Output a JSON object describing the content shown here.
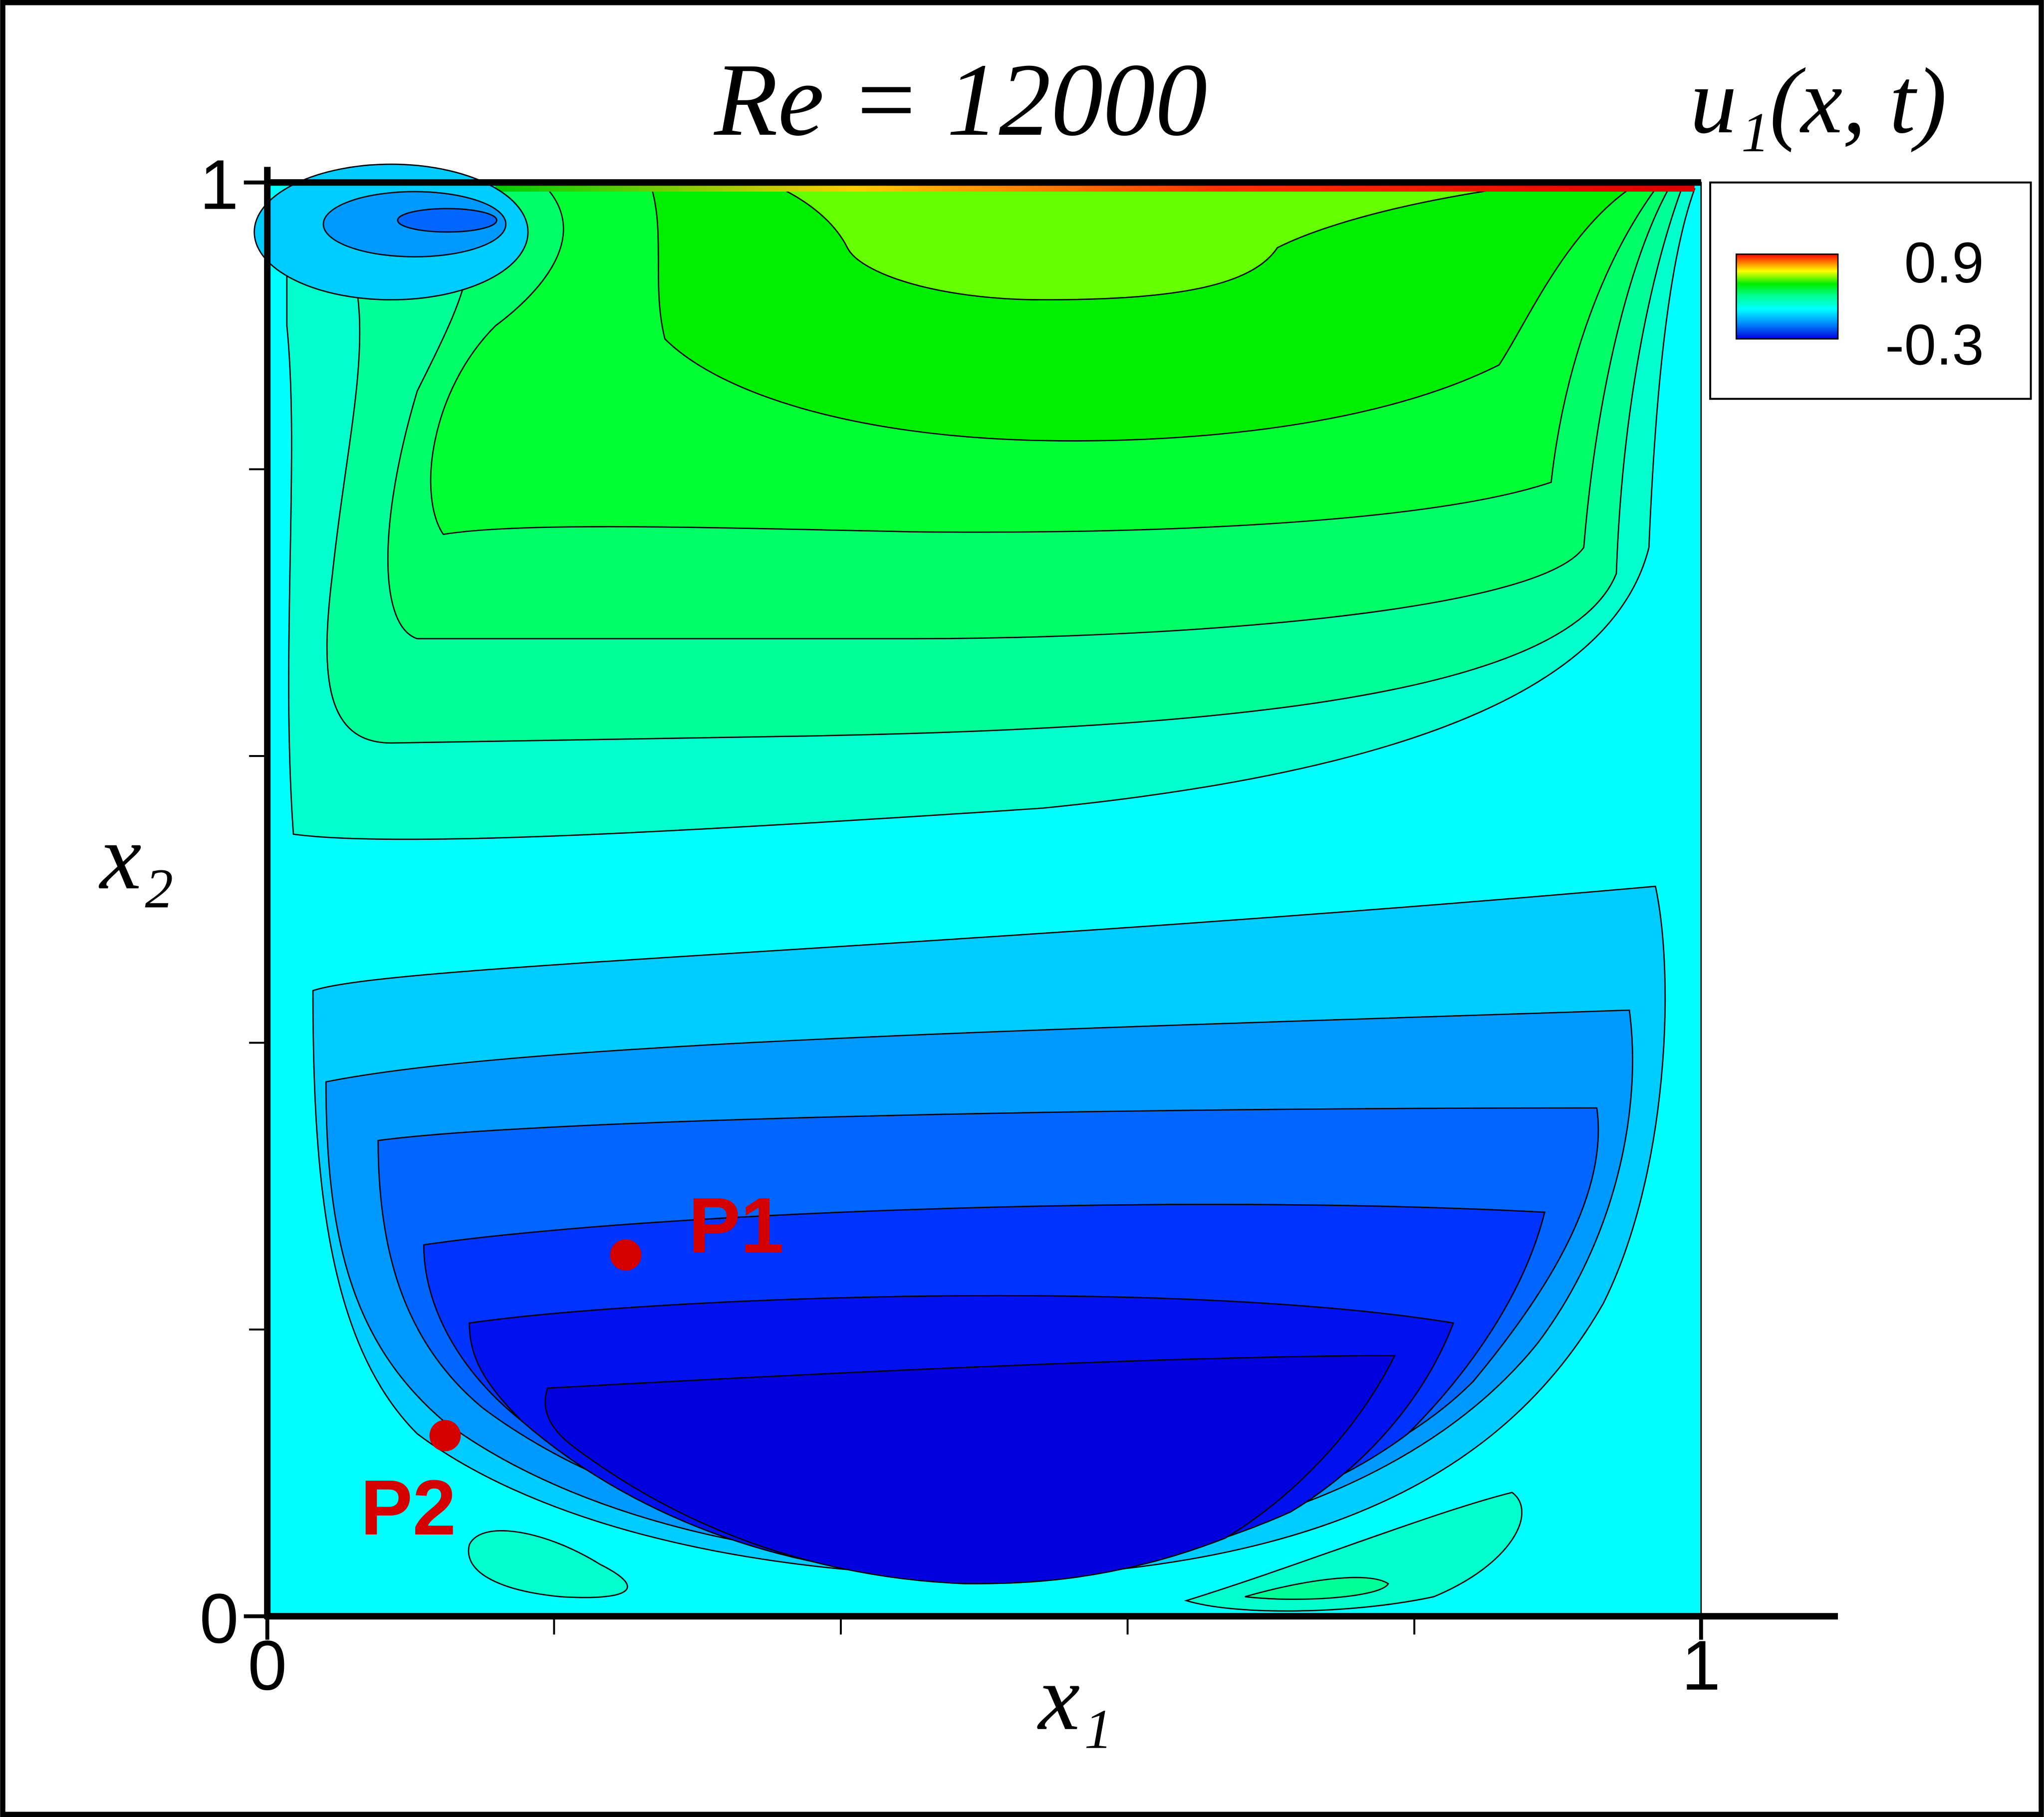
{
  "chart_data": {
    "type": "contour",
    "title": "Re = 12000",
    "x_label": "x₁",
    "y_label": "x₂",
    "xlim": [
      0,
      1
    ],
    "ylim": [
      0,
      1
    ],
    "xticks": [
      0,
      1
    ],
    "yticks": [
      0,
      1
    ],
    "xminor": [
      0.2,
      0.4,
      0.6,
      0.8
    ],
    "yminor": [
      0.2,
      0.4,
      0.6,
      0.8
    ],
    "colorbar": {
      "title": "u₁(x, t)",
      "range": [
        -0.3,
        0.9
      ],
      "ticks": [
        0.9,
        -0.3
      ]
    },
    "points": [
      {
        "name": "P1",
        "x": 0.25,
        "y": 0.252,
        "color": "#d40000"
      },
      {
        "name": "P2",
        "x": 0.124,
        "y": 0.126,
        "color": "#d40000"
      }
    ]
  }
}
